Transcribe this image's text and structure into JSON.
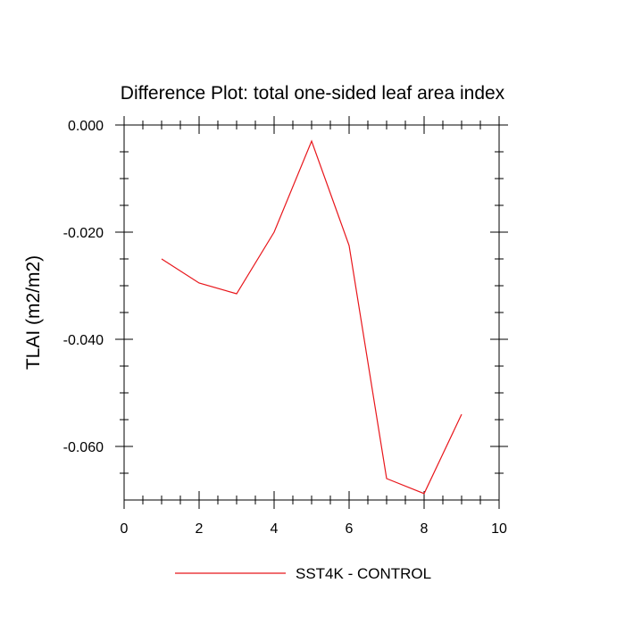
{
  "chart_data": {
    "type": "line",
    "title": "Difference Plot: total one-sided leaf area index",
    "xlabel": "",
    "ylabel": "TLAI  (m2/m2)",
    "xlim": [
      0,
      10
    ],
    "ylim": [
      -0.07,
      0.0
    ],
    "x_ticks": [
      0,
      2,
      4,
      6,
      8,
      10
    ],
    "x_tick_labels": [
      "0",
      "2",
      "4",
      "6",
      "8",
      "10"
    ],
    "y_ticks": [
      0.0,
      -0.02,
      -0.04,
      -0.06
    ],
    "y_tick_labels": [
      "0.000",
      "-0.020",
      "-0.040",
      "-0.060"
    ],
    "grid": false,
    "legend_position": "bottom-center",
    "series": [
      {
        "name": "SST4K - CONTROL",
        "color": "#e8161b",
        "x": [
          1,
          2,
          3,
          4,
          5,
          6,
          7,
          8,
          9
        ],
        "y": [
          -0.025,
          -0.0295,
          -0.0315,
          -0.02,
          -0.003,
          -0.0225,
          -0.066,
          -0.0688,
          -0.054
        ]
      }
    ]
  }
}
